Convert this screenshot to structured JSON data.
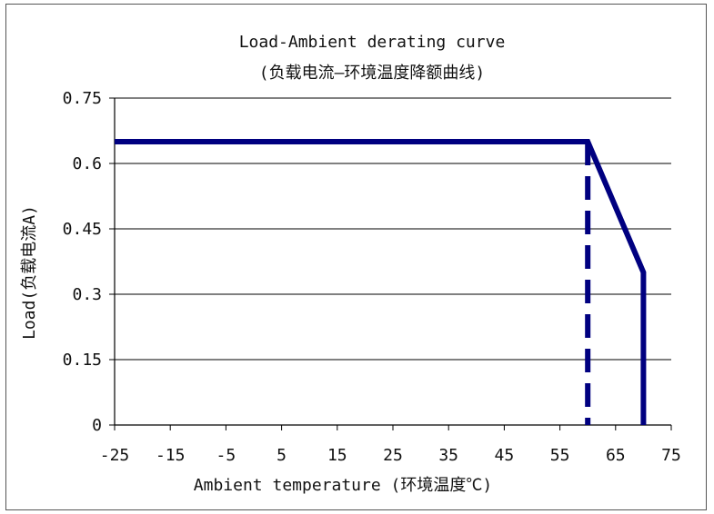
{
  "chart_data": {
    "type": "line",
    "title": "Load-Ambient derating curve",
    "subtitle": "(负载电流—环境温度降额曲线)",
    "xlabel": "Ambient temperature (环境温度℃)",
    "ylabel": "Load(负载电流A)",
    "xlim": [
      -25,
      75
    ],
    "ylim": [
      0,
      0.75
    ],
    "x_ticks": [
      "-25",
      "-15",
      "-5",
      "5",
      "15",
      "25",
      "35",
      "45",
      "55",
      "65",
      "75"
    ],
    "y_ticks": [
      "0",
      "0.15",
      "0.3",
      "0.45",
      "0.6",
      "0.75"
    ],
    "grid": "horizontal",
    "series": [
      {
        "style": "solid",
        "color": "#000080",
        "x": [
          -25,
          60,
          70,
          70
        ],
        "y": [
          0.65,
          0.65,
          0.35,
          0
        ]
      },
      {
        "style": "dashed",
        "color": "#000080",
        "x": [
          60,
          60
        ],
        "y": [
          0.65,
          0
        ]
      }
    ]
  }
}
